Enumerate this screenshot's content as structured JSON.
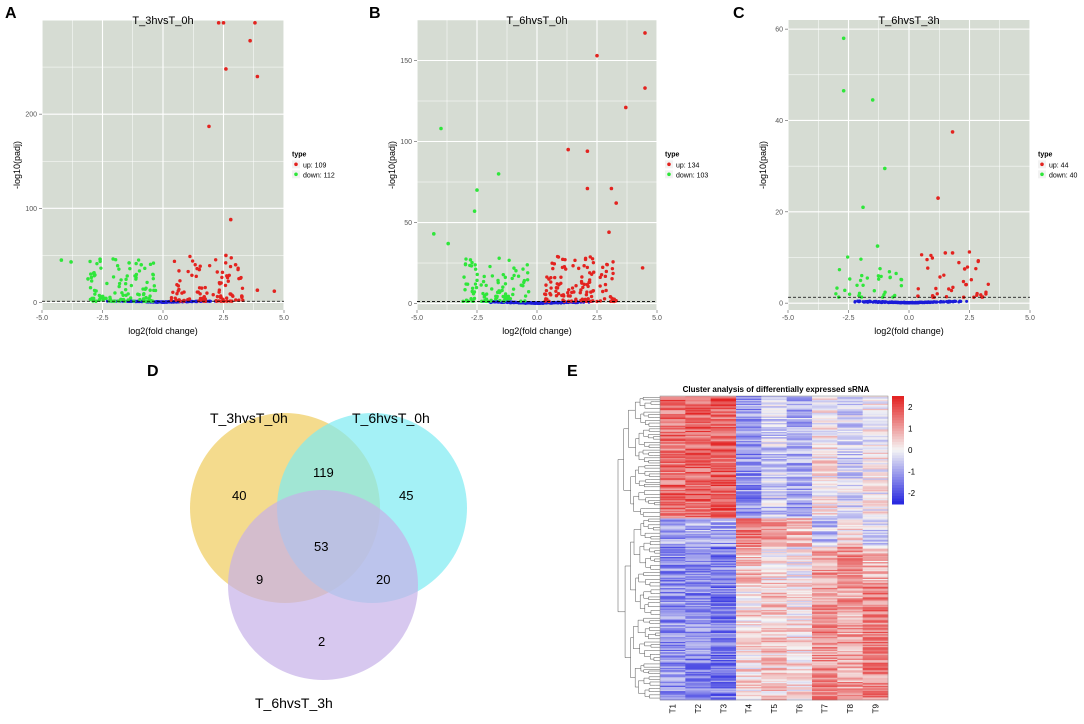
{
  "panels": {
    "A": {
      "letter": "A"
    },
    "B": {
      "letter": "B"
    },
    "C": {
      "letter": "C"
    },
    "D": {
      "letter": "D"
    },
    "E": {
      "letter": "E"
    }
  },
  "colors": {
    "panel_bg": "#d6dcd3",
    "grid": "#ffffff",
    "up": "#e3231f",
    "down": "#2ee63a",
    "nodiff": "#1a1ad8",
    "venn_a": "#f2d579",
    "venn_b": "#7eebf2",
    "venn_c": "#c6b0e8",
    "hm_high": "#e32424",
    "hm_mid": "#f5f5f5",
    "hm_low": "#2a2ae0"
  },
  "chart_data": [
    {
      "type": "scatter",
      "id": "A",
      "title": "T_3hvsT_0h",
      "xlabel": "log2(fold change)",
      "ylabel": "-log10(padj)",
      "xlim": [
        -5,
        5
      ],
      "ylim": [
        -8,
        300
      ],
      "xticks": [
        -5.0,
        -2.5,
        0.0,
        2.5,
        5.0
      ],
      "xtick_labels": [
        "-5.0",
        "-2.5",
        "0.0",
        "2.5",
        "5.0"
      ],
      "yticks": [
        0,
        100,
        200
      ],
      "ytick_labels": [
        "0",
        "100",
        "200"
      ],
      "threshold": 1.3,
      "legend": {
        "title": "type",
        "entries": [
          {
            "label": "up: 109",
            "type": "up"
          },
          {
            "label": "down: 112",
            "type": "down"
          }
        ]
      },
      "up": {
        "count": 109,
        "key_points": [
          [
            2.3,
            297
          ],
          [
            2.5,
            297
          ],
          [
            3.8,
            297
          ],
          [
            3.6,
            278
          ],
          [
            2.6,
            248
          ],
          [
            3.9,
            240
          ],
          [
            1.9,
            187
          ],
          [
            2.8,
            88
          ],
          [
            2.6,
            50
          ],
          [
            3.0,
            40
          ],
          [
            1.5,
            35
          ],
          [
            4.6,
            12
          ],
          [
            3.9,
            13
          ]
        ]
      },
      "down": {
        "count": 112,
        "key_points": [
          [
            -4.2,
            45
          ],
          [
            -3.8,
            43
          ],
          [
            -2.6,
            46
          ],
          [
            -1.4,
            42
          ],
          [
            -0.9,
            40
          ],
          [
            -3.1,
            25
          ]
        ]
      }
    },
    {
      "type": "scatter",
      "id": "B",
      "title": "T_6hvsT_0h",
      "xlabel": "log2(fold change)",
      "ylabel": "-log10(padj)",
      "xlim": [
        -5,
        5
      ],
      "ylim": [
        -4,
        175
      ],
      "xticks": [
        -5.0,
        -2.5,
        0.0,
        2.5,
        5.0
      ],
      "xtick_labels": [
        "-5.0",
        "-2.5",
        "0.0",
        "2.5",
        "5.0"
      ],
      "yticks": [
        0,
        50,
        100,
        150
      ],
      "ytick_labels": [
        "0",
        "50",
        "100",
        "150"
      ],
      "threshold": 1.3,
      "legend": {
        "title": "type",
        "entries": [
          {
            "label": "up: 134",
            "type": "up"
          },
          {
            "label": "down: 103",
            "type": "down"
          }
        ]
      },
      "up": {
        "count": 134,
        "key_points": [
          [
            4.5,
            167
          ],
          [
            2.5,
            153
          ],
          [
            4.5,
            133
          ],
          [
            3.7,
            121
          ],
          [
            1.3,
            95
          ],
          [
            2.1,
            94
          ],
          [
            2.1,
            71
          ],
          [
            3.1,
            71
          ],
          [
            3.3,
            62
          ],
          [
            3.0,
            44
          ],
          [
            4.4,
            22
          ]
        ]
      },
      "down": {
        "count": 103,
        "key_points": [
          [
            -4.0,
            108
          ],
          [
            -1.6,
            80
          ],
          [
            -2.5,
            70
          ],
          [
            -2.6,
            57
          ],
          [
            -4.3,
            43
          ],
          [
            -3.7,
            37
          ]
        ]
      }
    },
    {
      "type": "scatter",
      "id": "C",
      "title": "T_6hvsT_3h",
      "xlabel": "log2(fold change)",
      "ylabel": "-log10(padj)",
      "xlim": [
        -5,
        5
      ],
      "ylim": [
        -1.5,
        62
      ],
      "xticks": [
        -5.0,
        -2.5,
        0.0,
        2.5,
        5.0
      ],
      "xtick_labels": [
        "-5.0",
        "-2.5",
        "0.0",
        "2.5",
        "5.0"
      ],
      "yticks": [
        0,
        20,
        40,
        60
      ],
      "ytick_labels": [
        "0",
        "20",
        "40",
        "60"
      ],
      "threshold": 1.3,
      "legend": {
        "title": "type",
        "entries": [
          {
            "label": "up: 44",
            "type": "up"
          },
          {
            "label": "down: 40",
            "type": "down"
          }
        ]
      },
      "up": {
        "count": 44,
        "key_points": [
          [
            1.8,
            37.5
          ],
          [
            1.2,
            23
          ],
          [
            2.3,
            7.5
          ],
          [
            1.5,
            11
          ],
          [
            1.8,
            11
          ]
        ]
      },
      "down": {
        "count": 40,
        "key_points": [
          [
            -2.7,
            58
          ],
          [
            -2.7,
            46.5
          ],
          [
            -1.5,
            44.5
          ],
          [
            -1.0,
            29.5
          ],
          [
            -1.9,
            21
          ],
          [
            -1.3,
            12.5
          ]
        ]
      }
    },
    {
      "type": "venn",
      "id": "D",
      "sets": [
        "T_3hvsT_0h",
        "T_6hvsT_0h",
        "T_6hvsT_3h"
      ],
      "regions": [
        {
          "sets": [
            "T_3hvsT_0h"
          ],
          "value": 40
        },
        {
          "sets": [
            "T_6hvsT_0h"
          ],
          "value": 45
        },
        {
          "sets": [
            "T_6hvsT_3h"
          ],
          "value": 2
        },
        {
          "sets": [
            "T_3hvsT_0h",
            "T_6hvsT_0h"
          ],
          "value": 119
        },
        {
          "sets": [
            "T_3hvsT_0h",
            "T_6hvsT_3h"
          ],
          "value": 9
        },
        {
          "sets": [
            "T_6hvsT_0h",
            "T_6hvsT_3h"
          ],
          "value": 20
        },
        {
          "sets": [
            "T_3hvsT_0h",
            "T_6hvsT_0h",
            "T_6hvsT_3h"
          ],
          "value": 53
        }
      ]
    },
    {
      "type": "heatmap",
      "id": "E",
      "title": "Cluster analysis of differentially expressed sRNA",
      "columns": [
        "T1",
        "T2",
        "T3",
        "T4",
        "T5",
        "T6",
        "T7",
        "T8",
        "T9"
      ],
      "colorbar_ticks": [
        2,
        1,
        0,
        -1,
        -2
      ],
      "colorbar_labels": [
        "2",
        "1",
        "0",
        "-1",
        "-2"
      ],
      "value_range": [
        -2.5,
        2.5
      ],
      "row_count": 236,
      "clusters": [
        {
          "rows": 95,
          "mean": [
            1.6,
            1.7,
            1.8,
            -1.2,
            -0.5,
            -0.9,
            0.2,
            -0.4,
            0.0
          ]
        },
        {
          "rows": 22,
          "mean": [
            -1.0,
            -0.9,
            -1.0,
            1.5,
            1.2,
            0.8,
            -0.6,
            0.3,
            -0.5
          ]
        },
        {
          "rows": 28,
          "mean": [
            -1.3,
            -1.2,
            -1.4,
            0.6,
            0.2,
            0.0,
            1.0,
            1.2,
            0.8
          ]
        },
        {
          "rows": 91,
          "mean": [
            -1.2,
            -1.3,
            -1.5,
            0.3,
            0.5,
            0.3,
            1.2,
            1.0,
            1.3
          ]
        }
      ]
    }
  ]
}
